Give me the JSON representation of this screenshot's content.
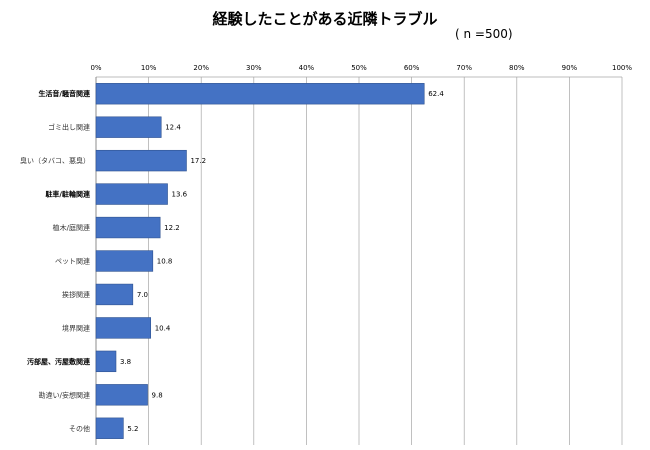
{
  "chart_data": {
    "type": "bar",
    "orientation": "horizontal",
    "title": "経験したことがある近隣トラブル",
    "subtitle": "( n =500)",
    "categories": [
      "生活音/騒音関連",
      "ゴミ出し関連",
      "臭い（タバコ、悪臭）",
      "駐車/駐輪関連",
      "植木/庭関連",
      "ペット関連",
      "挨拶関連",
      "境界関連",
      "汚部屋、汚屋敷関連",
      "勘違い/妄想関連",
      "その他"
    ],
    "category_emphasis": [
      "bold",
      "light",
      "light",
      "bold",
      "light",
      "light",
      "light",
      "light",
      "bold",
      "light",
      "light"
    ],
    "values": [
      62.4,
      12.4,
      17.2,
      13.6,
      12.2,
      10.8,
      7.0,
      10.4,
      3.8,
      9.8,
      5.2
    ],
    "value_labels": [
      "62.4",
      "12.4",
      "17.2",
      "13.6",
      "12.2",
      "10.8",
      "7.0",
      "10.4",
      "3.8",
      "9.8",
      "5.2"
    ],
    "xlim": [
      0,
      100
    ],
    "xticks": [
      "0%",
      "10%",
      "20%",
      "30%",
      "40%",
      "50%",
      "60%",
      "70%",
      "80%",
      "90%",
      "100%"
    ],
    "x_axis_position": "top",
    "grid": true,
    "legend": "none",
    "bar_color": "#4472c4",
    "bar_edge_color": "#2f528f",
    "grid_color": "#a6a6a6"
  }
}
